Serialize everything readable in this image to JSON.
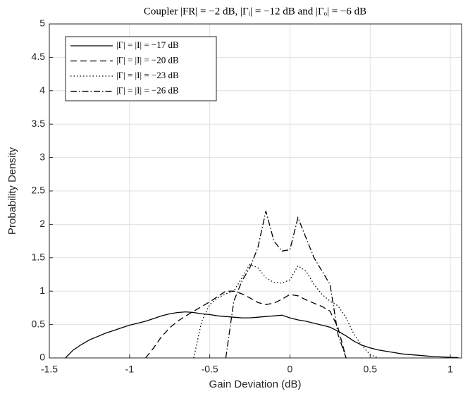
{
  "chart_data": {
    "type": "line",
    "title": "Coupler |FR| = −2 dB, |Γᵢ| = −12 dB and |Γₒ| = −6 dB",
    "xlabel": "Gain Deviation (dB)",
    "ylabel": "Probability Density",
    "xlim": [
      -1.5,
      1.07
    ],
    "ylim": [
      0,
      5
    ],
    "xticks": [
      -1.5,
      -1,
      -0.5,
      0,
      0.5,
      1
    ],
    "yticks": [
      0,
      0.5,
      1,
      1.5,
      2,
      2.5,
      3,
      3.5,
      4,
      4.5,
      5
    ],
    "grid": true,
    "legend": "upper left",
    "x": [
      -1.45,
      -1.4,
      -1.35,
      -1.3,
      -1.25,
      -1.2,
      -1.15,
      -1.1,
      -1.05,
      -1.0,
      -0.95,
      -0.9,
      -0.85,
      -0.8,
      -0.75,
      -0.7,
      -0.65,
      -0.6,
      -0.55,
      -0.5,
      -0.45,
      -0.4,
      -0.35,
      -0.3,
      -0.25,
      -0.2,
      -0.15,
      -0.1,
      -0.05,
      0,
      0.05,
      0.1,
      0.15,
      0.2,
      0.25,
      0.3,
      0.35,
      0.4,
      0.45,
      0.5,
      0.55,
      0.6,
      0.65,
      0.7,
      0.75,
      0.8,
      0.85,
      0.9,
      0.95,
      1.0,
      1.05
    ],
    "series": [
      {
        "name": "|Γ| = |I| = −17 dB",
        "color": "#000000",
        "dash": "solid",
        "values": [
          null,
          0,
          0.12,
          0.2,
          0.27,
          0.32,
          0.37,
          0.41,
          0.45,
          0.49,
          0.52,
          0.55,
          0.59,
          0.63,
          0.66,
          0.68,
          0.69,
          0.68,
          0.66,
          0.65,
          0.63,
          0.62,
          0.61,
          0.6,
          0.6,
          0.61,
          0.62,
          0.63,
          0.64,
          0.6,
          0.57,
          0.55,
          0.52,
          0.49,
          0.46,
          0.4,
          0.33,
          0.25,
          0.19,
          0.15,
          0.12,
          0.1,
          0.08,
          0.06,
          0.05,
          0.04,
          0.03,
          0.02,
          0.015,
          0.01,
          0.005
        ]
      },
      {
        "name": "|Γ| = |I| = −20 dB",
        "color": "#000000",
        "dash": "dashed",
        "values": [
          null,
          null,
          null,
          null,
          null,
          null,
          null,
          null,
          null,
          null,
          null,
          0,
          0.15,
          0.32,
          0.45,
          0.55,
          0.63,
          0.7,
          0.77,
          0.84,
          0.92,
          1.0,
          1.0,
          0.96,
          0.9,
          0.83,
          0.8,
          0.82,
          0.88,
          0.95,
          0.93,
          0.87,
          0.82,
          0.77,
          0.7,
          0.45,
          0,
          null,
          null,
          null,
          null,
          null,
          null,
          null,
          null,
          null,
          null,
          null,
          null,
          null,
          null
        ]
      },
      {
        "name": "|Γ| = |I| = −23 dB",
        "color": "#000000",
        "dash": "dotted",
        "values": [
          null,
          null,
          null,
          null,
          null,
          null,
          null,
          null,
          null,
          null,
          null,
          null,
          null,
          null,
          null,
          null,
          null,
          0,
          0.55,
          0.8,
          0.9,
          0.96,
          1.0,
          1.2,
          1.4,
          1.35,
          1.2,
          1.13,
          1.12,
          1.17,
          1.38,
          1.3,
          1.1,
          0.95,
          0.85,
          0.78,
          0.6,
          0.35,
          0.18,
          0.05,
          0,
          null,
          null,
          null,
          null,
          null,
          null,
          null,
          null,
          null,
          null
        ]
      },
      {
        "name": "|Γ| = |I| = −26 dB",
        "color": "#000000",
        "dash": "dashdot",
        "values": [
          null,
          null,
          null,
          null,
          null,
          null,
          null,
          null,
          null,
          null,
          null,
          null,
          null,
          null,
          null,
          null,
          null,
          null,
          null,
          null,
          null,
          0,
          0.85,
          1.15,
          1.35,
          1.65,
          2.2,
          1.75,
          1.6,
          1.62,
          2.1,
          1.8,
          1.5,
          1.3,
          1.1,
          0.35,
          0,
          null,
          null,
          null,
          null,
          null,
          null,
          null,
          null,
          null,
          null,
          null,
          null,
          null,
          null
        ]
      }
    ]
  }
}
